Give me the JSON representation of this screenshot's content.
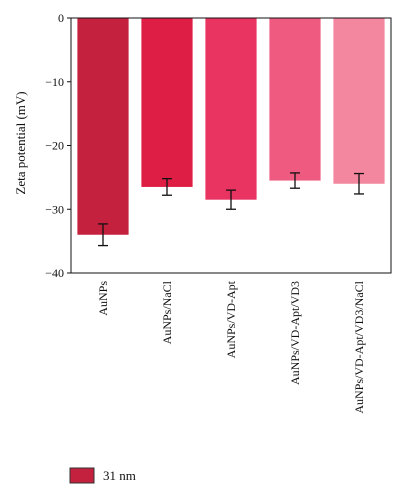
{
  "chart_data": {
    "type": "bar",
    "title": "",
    "xlabel": "",
    "ylabel": "Zeta potential (mV)",
    "ylim": [
      -40,
      0
    ],
    "yticks": [
      0,
      -10,
      -20,
      -30,
      -40
    ],
    "ytick_labels": [
      "0",
      "−10",
      "−20",
      "−30",
      "−40"
    ],
    "categories": [
      "AuNPs",
      "AuNPs/NaCl",
      "AuNPs/VD-Apt",
      "AuNPs/VD-Apt/VD3",
      "AuNPs/VD-Apt/VD3/NaCl"
    ],
    "series": [
      {
        "name": "31 nm",
        "values": [
          -34.0,
          -26.5,
          -28.5,
          -25.5,
          -26.0
        ],
        "error": [
          1.7,
          1.3,
          1.5,
          1.2,
          1.6
        ]
      }
    ],
    "bar_colors": [
      "#c3213e",
      "#df1e46",
      "#e93361",
      "#ef5a80",
      "#f3879f"
    ],
    "legend": {
      "position": "bottom-left",
      "label": "31 nm",
      "swatch_color": "#c3213e"
    },
    "grid": false
  }
}
